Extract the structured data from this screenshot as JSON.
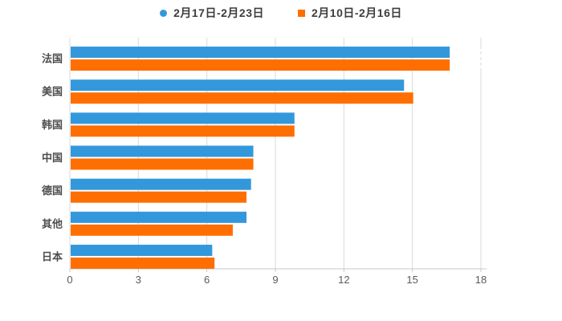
{
  "colors": {
    "series1": "#3398DB",
    "series2": "#FF6E00",
    "grid": "#DADADA",
    "axis": "#C9C9C9",
    "category_label": "#4D4D4D",
    "tick_label": "#5A5A5A",
    "legend_label": "#3D3D3D"
  },
  "chart_data": {
    "type": "bar",
    "orientation": "horizontal",
    "title": "",
    "xlabel": "",
    "ylabel": "",
    "legend_position": "top",
    "grid": true,
    "xlim": [
      0,
      18
    ],
    "xticks": [
      "0",
      "3",
      "6",
      "9",
      "12",
      "15",
      "18"
    ],
    "xtick_values": [
      0,
      3,
      6,
      9,
      12,
      15,
      18
    ],
    "categories": [
      "法国",
      "美国",
      "韩国",
      "中国",
      "德国",
      "其他",
      "日本"
    ],
    "series": [
      {
        "name": "2月17日-2月23日",
        "marker": "circle",
        "color": "#3398DB",
        "values": [
          16.6,
          14.6,
          9.8,
          8.0,
          7.9,
          7.7,
          6.2
        ]
      },
      {
        "name": "2月10日-2月16日",
        "marker": "square",
        "color": "#FF6E00",
        "values": [
          16.6,
          15.0,
          9.8,
          8.0,
          7.7,
          7.1,
          6.3
        ]
      }
    ]
  }
}
